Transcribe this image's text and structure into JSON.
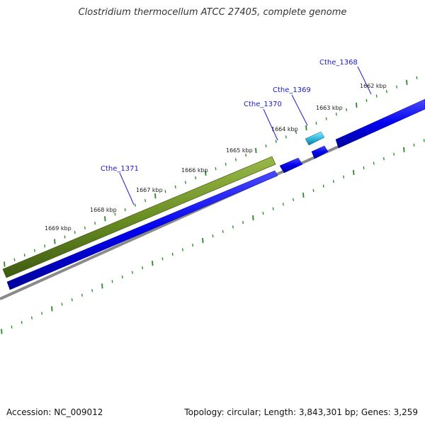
{
  "title": "Clostridium thermocellum ATCC 27405, complete genome",
  "footer": {
    "accession": "Accession: NC_009012",
    "summary": "Topology: circular; Length: 3,843,301 bp; Genes: 3,259"
  },
  "colors": {
    "forward_strand": "#0000ee",
    "reverse_strand": "#6b8e23",
    "highlight_gene": "#33bbdd",
    "tick_marks": "#228b22",
    "backbone": "#888888",
    "gene_labels": "#1a1acc"
  },
  "kbp_labels": [
    "1662 kbp",
    "1663 kbp",
    "1664 kbp",
    "1665 kbp",
    "1666 kbp",
    "1667 kbp",
    "1668 kbp",
    "1669 kbp"
  ],
  "gene_labels": [
    "Cthe_1368",
    "Cthe_1369",
    "Cthe_1370",
    "Cthe_1371"
  ]
}
